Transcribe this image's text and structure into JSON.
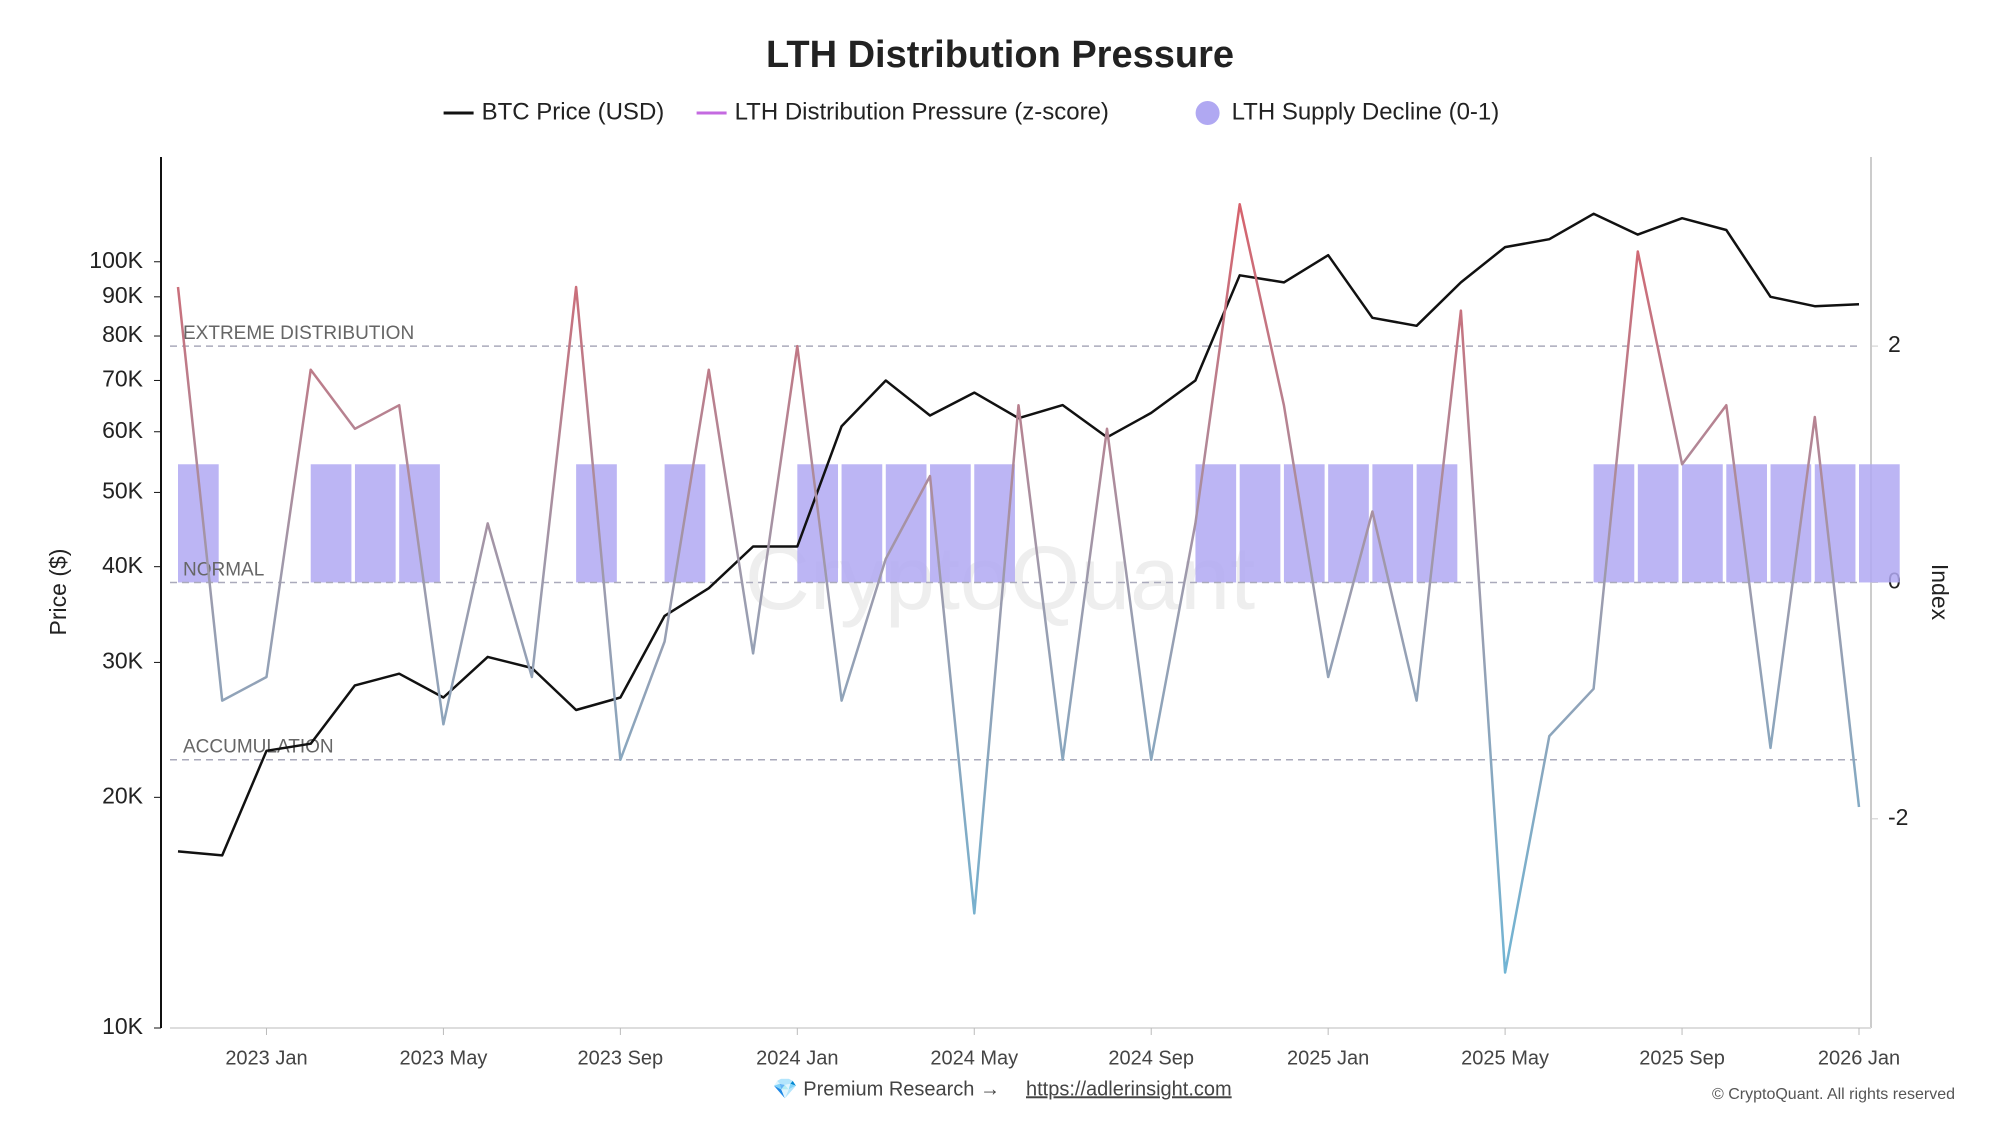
{
  "chart_data": {
    "type": "line",
    "title": "LTH Distribution Pressure",
    "y_label": "Price ($)",
    "y2_label": "Index",
    "watermark": "CryptoQuant",
    "log_y": true,
    "x": [
      "2022-11",
      "2022-12",
      "2023-01",
      "2023-02",
      "2023-03",
      "2023-04",
      "2023-05",
      "2023-06",
      "2023-07",
      "2023-08",
      "2023-09",
      "2023-10",
      "2023-11",
      "2023-12",
      "2024-01",
      "2024-02",
      "2024-03",
      "2024-04",
      "2024-05",
      "2024-06",
      "2024-07",
      "2024-08",
      "2024-09",
      "2024-10",
      "2024-11",
      "2024-12",
      "2025-01",
      "2025-02",
      "2025-03",
      "2025-04",
      "2025-05",
      "2025-06",
      "2025-07",
      "2025-08",
      "2025-09",
      "2025-10",
      "2025-11",
      "2025-12",
      "2026-01"
    ],
    "xlim": [
      "2022-11",
      "2026-01"
    ],
    "xticks": [
      {
        "value": "2023-01",
        "label": "2023 Jan"
      },
      {
        "value": "2023-05",
        "label": "2023 May"
      },
      {
        "value": "2023-09",
        "label": "2023 Sep"
      },
      {
        "value": "2024-01",
        "label": "2024 Jan"
      },
      {
        "value": "2024-05",
        "label": "2024 May"
      },
      {
        "value": "2024-09",
        "label": "2024 Sep"
      },
      {
        "value": "2025-01",
        "label": "2025 Jan"
      },
      {
        "value": "2025-05",
        "label": "2025 May"
      },
      {
        "value": "2025-09",
        "label": "2025 Sep"
      },
      {
        "value": "2026-01",
        "label": "2026 Jan"
      }
    ],
    "ylim": [
      10000,
      137000
    ],
    "yticks": [
      {
        "value": 10000,
        "label": "10K"
      },
      {
        "value": 20000,
        "label": "20K"
      },
      {
        "value": 30000,
        "label": "30K"
      },
      {
        "value": 40000,
        "label": "40K"
      },
      {
        "value": 50000,
        "label": "50K"
      },
      {
        "value": 60000,
        "label": "60K"
      },
      {
        "value": 70000,
        "label": "70K"
      },
      {
        "value": 80000,
        "label": "80K"
      },
      {
        "value": 90000,
        "label": "90K"
      },
      {
        "value": 100000,
        "label": "100K"
      }
    ],
    "y2lim": [
      -3.77,
      3.6
    ],
    "y2ticks": [
      -2,
      0,
      2
    ],
    "series": [
      {
        "name": "BTC Price (USD)",
        "type": "line",
        "color": "#111111",
        "values": [
          17000,
          16800,
          23000,
          23500,
          28000,
          29000,
          27000,
          30500,
          29500,
          26000,
          27000,
          34500,
          37500,
          42500,
          42500,
          61000,
          70000,
          63000,
          67500,
          62500,
          65000,
          59000,
          63500,
          70000,
          96000,
          94000,
          102000,
          84500,
          82500,
          94000,
          104500,
          107000,
          115500,
          108500,
          114000,
          110000,
          90000,
          87500,
          88000
        ]
      },
      {
        "name": "LTH Distribution Pressure (z-score)",
        "type": "line",
        "axis": "y2",
        "color": "#c46ae0",
        "gradient": [
          "#d9606a",
          "#9c9cae",
          "#6fb6d6"
        ],
        "values": [
          2.5,
          -1.0,
          -0.8,
          1.8,
          1.3,
          1.5,
          -1.2,
          0.5,
          -0.8,
          2.5,
          -1.5,
          -0.5,
          1.8,
          -0.6,
          2.0,
          -1.0,
          0.2,
          0.9,
          -2.8,
          1.5,
          -1.5,
          1.3,
          -1.5,
          0.5,
          3.2,
          1.5,
          -0.8,
          0.6,
          -1.0,
          2.3,
          -3.3,
          -1.3,
          -0.9,
          2.8,
          1.0,
          1.5,
          -1.4,
          1.4,
          -1.9
        ]
      },
      {
        "name": "LTH Supply Decline (0-1)",
        "type": "bar",
        "axis": "y2",
        "color": "#b0a8f2",
        "values": [
          1,
          0,
          0,
          1,
          1,
          1,
          0,
          0,
          0,
          1,
          0,
          1,
          0,
          0,
          1,
          1,
          1,
          1,
          1,
          0,
          0,
          0,
          0,
          1,
          1,
          1,
          1,
          1,
          1,
          0,
          0,
          0,
          1,
          1,
          1,
          1,
          1,
          1,
          1
        ]
      }
    ],
    "annotations": [
      {
        "label": "EXTREME DISTRIBUTION",
        "value": 2,
        "axis": "y2"
      },
      {
        "label": "NORMAL",
        "value": 0,
        "axis": "y2"
      },
      {
        "label": "ACCUMULATION",
        "value": -1.5,
        "axis": "y2"
      }
    ],
    "footer": {
      "text": "💎 Premium Research →",
      "link": "https://adlerinsight.com",
      "copyright": "© CryptoQuant. All rights reserved"
    }
  }
}
